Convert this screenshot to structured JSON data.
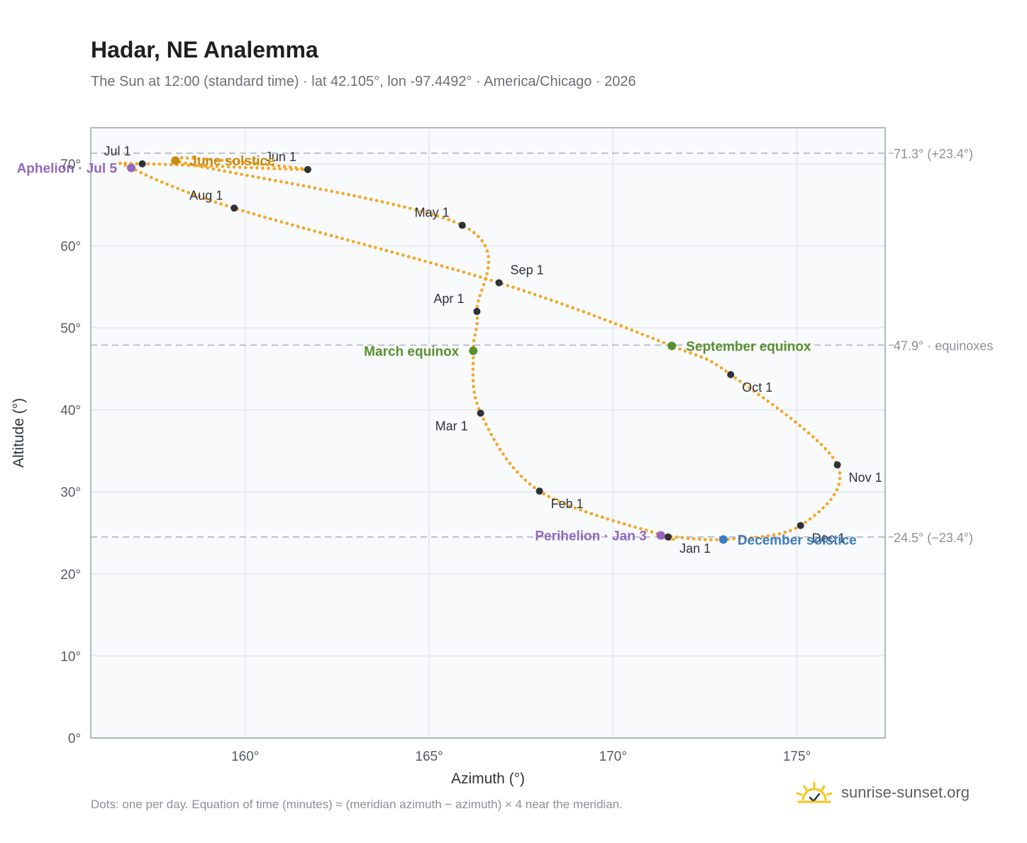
{
  "header": {
    "title": "Hadar, NE Analemma",
    "subtitle": "The Sun at 12:00 (standard time) · lat 42.105°, lon -97.4492° · America/Chicago · 2026"
  },
  "footer": {
    "note": "Dots: one per day. Equation of time (minutes) ≈ (meridian azimuth − azimuth) × 4 near the meridian.",
    "brand": "sunrise-sunset.org"
  },
  "colors": {
    "curve": "#f5a623",
    "month_dot": "#2d3138",
    "solstice_june": "#c98a10",
    "equinox": "#5a8f2e",
    "december": "#3b7bbf",
    "apsis": "#9467bd",
    "plot_bg": "#f8fafc",
    "grid": "#e3e7ec",
    "ref_line": "#aab2bb"
  },
  "chart_data": {
    "type": "scatter",
    "xlabel": "Azimuth (°)",
    "ylabel": "Altitude (°)",
    "xlim": [
      155.8,
      177.4
    ],
    "ylim": [
      0,
      74.4
    ],
    "xticks": [
      160,
      165,
      170,
      175
    ],
    "yticks": [
      0,
      10,
      20,
      30,
      40,
      50,
      60,
      70
    ],
    "tick_suffix": "°",
    "grid": true,
    "curve_color": "#f5a623",
    "series": [
      {
        "points": [
          {
            "x": 171.5,
            "y": 24.5
          },
          {
            "x": 168.0,
            "y": 30.1
          },
          {
            "x": 166.4,
            "y": 39.6
          },
          {
            "x": 166.2,
            "y": 47.2
          },
          {
            "x": 166.3,
            "y": 52.0
          },
          {
            "x": 165.9,
            "y": 62.5
          },
          {
            "x": 158.1,
            "y": 70.4
          },
          {
            "x": 161.7,
            "y": 69.3
          },
          {
            "x": 157.2,
            "y": 70.0
          },
          {
            "x": 156.9,
            "y": 69.5
          },
          {
            "x": 159.7,
            "y": 64.6
          },
          {
            "x": 166.9,
            "y": 55.5
          },
          {
            "x": 171.6,
            "y": 47.8
          },
          {
            "x": 173.2,
            "y": 44.3
          },
          {
            "x": 176.1,
            "y": 33.3
          },
          {
            "x": 175.1,
            "y": 25.9
          },
          {
            "x": 173.0,
            "y": 24.2
          },
          {
            "x": 171.3,
            "y": 24.7
          },
          {
            "x": 171.5,
            "y": 24.5
          }
        ]
      }
    ],
    "months": [
      {
        "label": "Jan 1",
        "x": 171.5,
        "y": 24.5,
        "anchor": "start",
        "dx": 16,
        "dy": 22
      },
      {
        "label": "Feb 1",
        "x": 168.0,
        "y": 30.1,
        "anchor": "start",
        "dx": 16,
        "dy": 24
      },
      {
        "label": "Mar 1",
        "x": 166.4,
        "y": 39.6,
        "anchor": "end",
        "dx": -18,
        "dy": 24
      },
      {
        "label": "Apr 1",
        "x": 166.3,
        "y": 52.0,
        "anchor": "end",
        "dx": -18,
        "dy": -12
      },
      {
        "label": "May 1",
        "x": 165.9,
        "y": 62.5,
        "anchor": "end",
        "dx": -18,
        "dy": -12
      },
      {
        "label": "Jun 1",
        "x": 161.7,
        "y": 69.3,
        "anchor": "end",
        "dx": -16,
        "dy": -12
      },
      {
        "label": "Jul 1",
        "x": 157.2,
        "y": 70.0,
        "anchor": "end",
        "dx": -16,
        "dy": -12
      },
      {
        "label": "Aug 1",
        "x": 159.7,
        "y": 64.6,
        "anchor": "end",
        "dx": -16,
        "dy": -12
      },
      {
        "label": "Sep 1",
        "x": 166.9,
        "y": 55.5,
        "anchor": "start",
        "dx": 16,
        "dy": -12
      },
      {
        "label": "Oct 1",
        "x": 173.2,
        "y": 44.3,
        "anchor": "start",
        "dx": 16,
        "dy": 24
      },
      {
        "label": "Nov 1",
        "x": 176.1,
        "y": 33.3,
        "anchor": "start",
        "dx": 16,
        "dy": 24
      },
      {
        "label": "Dec 1",
        "x": 175.1,
        "y": 25.9,
        "anchor": "start",
        "dx": 16,
        "dy": 24
      }
    ],
    "events": [
      {
        "label": "June solstice",
        "x": 158.1,
        "y": 70.4,
        "color": "#c98a10",
        "anchor": "start",
        "dx": 20
      },
      {
        "label": "March equinox",
        "x": 166.2,
        "y": 47.2,
        "color": "#5a8f2e",
        "anchor": "end",
        "dx": -20
      },
      {
        "label": "September equinox",
        "x": 171.6,
        "y": 47.8,
        "color": "#5a8f2e",
        "anchor": "start",
        "dx": 20
      },
      {
        "label": "December solstice",
        "x": 173.0,
        "y": 24.2,
        "color": "#3b7bbf",
        "anchor": "start",
        "dx": 20
      },
      {
        "label": "Aphelion · Jul 5",
        "x": 156.9,
        "y": 69.5,
        "color": "#9467bd",
        "anchor": "end",
        "dx": -20
      },
      {
        "label": "Perihelion · Jan 3",
        "x": 171.3,
        "y": 24.7,
        "color": "#9467bd",
        "anchor": "end",
        "dx": -20
      }
    ],
    "reference_lines": [
      {
        "y": 71.3,
        "label": "71.3° (+23.4°)"
      },
      {
        "y": 47.9,
        "label": "47.9° · equinoxes"
      },
      {
        "y": 24.5,
        "label": "24.5° (−23.4°)"
      }
    ]
  }
}
